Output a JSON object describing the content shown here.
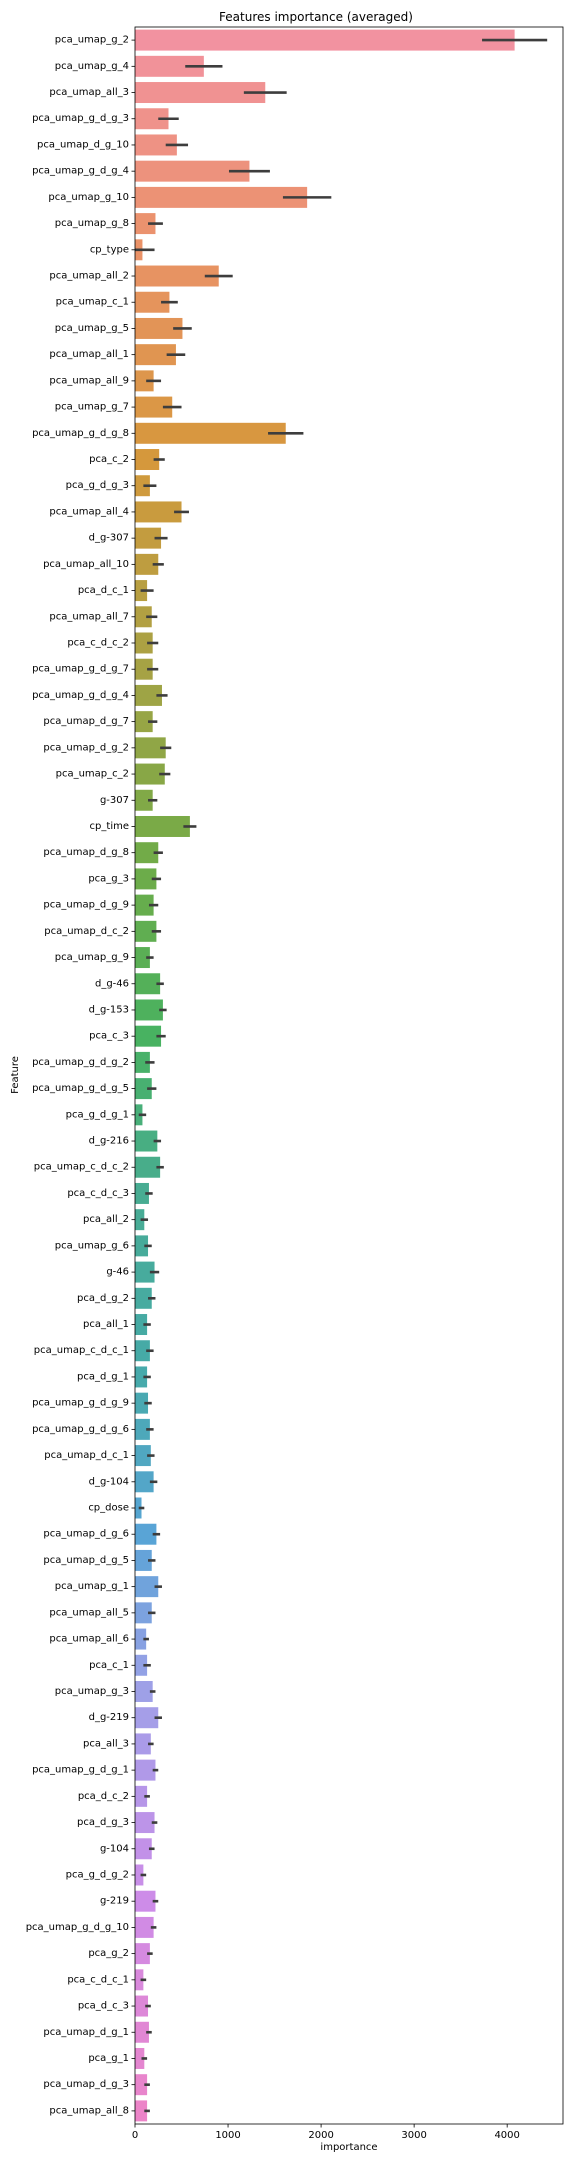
{
  "chart_data": {
    "type": "bar",
    "orientation": "horizontal",
    "title": "Features importance (averaged)",
    "xlabel": "importance",
    "ylabel": "Feature",
    "xlim": [
      0,
      4600
    ],
    "xticks": [
      0,
      1000,
      2000,
      3000,
      4000
    ],
    "grid": false,
    "legend": "none",
    "palette": "husl",
    "categories": [
      "pca_umap_g_2",
      "pca_umap_g_4",
      "pca_umap_all_3",
      "pca_umap_g_d_g_3",
      "pca_umap_d_g_10",
      "pca_umap_g_d_g_4",
      "pca_umap_g_10",
      "pca_umap_g_8",
      "cp_type",
      "pca_umap_all_2",
      "pca_umap_c_1",
      "pca_umap_g_5",
      "pca_umap_all_1",
      "pca_umap_all_9",
      "pca_umap_g_7",
      "pca_umap_g_d_g_8",
      "pca_c_2",
      "pca_g_d_g_3",
      "pca_umap_all_4",
      "d_g-307",
      "pca_umap_all_10",
      "pca_d_c_1",
      "pca_umap_all_7",
      "pca_c_d_c_2",
      "pca_umap_g_d_g_7",
      "pca_umap_g_d_g_4",
      "pca_umap_d_g_7",
      "pca_umap_d_g_2",
      "pca_umap_c_2",
      "g-307",
      "cp_time",
      "pca_umap_d_g_8",
      "pca_g_3",
      "pca_umap_d_g_9",
      "pca_umap_d_c_2",
      "pca_umap_g_9",
      "d_g-46",
      "d_g-153",
      "pca_c_3",
      "pca_umap_g_d_g_2",
      "pca_umap_g_d_g_5",
      "pca_g_d_g_1",
      "d_g-216",
      "pca_umap_c_d_c_2",
      "pca_c_d_c_3",
      "pca_all_2",
      "pca_umap_g_6",
      "g-46",
      "pca_d_g_2",
      "pca_all_1",
      "pca_umap_c_d_c_1",
      "pca_d_g_1",
      "pca_umap_g_d_g_9",
      "pca_umap_g_d_g_6",
      "pca_umap_d_c_1",
      "d_g-104",
      "cp_dose",
      "pca_umap_d_g_6",
      "pca_umap_d_g_5",
      "pca_umap_g_1",
      "pca_umap_all_5",
      "pca_umap_all_6",
      "pca_c_1",
      "pca_umap_g_3",
      "d_g-219",
      "pca_all_3",
      "pca_umap_g_d_g_1",
      "pca_d_c_2",
      "pca_d_g_3",
      "g-104",
      "pca_g_d_g_2",
      "g-219",
      "pca_umap_g_d_g_10",
      "pca_g_2",
      "pca_c_d_c_1",
      "pca_d_c_3",
      "pca_umap_d_g_1",
      "pca_g_1",
      "pca_umap_d_g_3",
      "pca_umap_all_8"
    ],
    "values": [
      4080,
      740,
      1400,
      360,
      450,
      1230,
      1850,
      220,
      80,
      900,
      370,
      510,
      440,
      200,
      400,
      1620,
      260,
      160,
      500,
      280,
      250,
      130,
      180,
      190,
      190,
      290,
      190,
      330,
      320,
      190,
      590,
      250,
      230,
      200,
      230,
      160,
      270,
      300,
      280,
      160,
      180,
      80,
      240,
      270,
      150,
      100,
      140,
      210,
      180,
      130,
      160,
      130,
      140,
      160,
      170,
      200,
      70,
      230,
      180,
      250,
      180,
      120,
      130,
      190,
      250,
      170,
      220,
      130,
      210,
      180,
      90,
      220,
      200,
      160,
      90,
      140,
      150,
      100,
      130,
      130
    ],
    "errors": [
      350,
      200,
      230,
      110,
      120,
      220,
      260,
      80,
      130,
      150,
      90,
      100,
      100,
      80,
      100,
      190,
      60,
      70,
      80,
      70,
      60,
      70,
      60,
      60,
      60,
      60,
      50,
      60,
      60,
      50,
      70,
      50,
      50,
      50,
      50,
      40,
      40,
      40,
      50,
      50,
      50,
      40,
      40,
      40,
      40,
      40,
      40,
      50,
      40,
      40,
      40,
      40,
      40,
      40,
      40,
      40,
      30,
      40,
      40,
      40,
      40,
      30,
      40,
      30,
      40,
      30,
      30,
      30,
      30,
      30,
      30,
      30,
      30,
      30,
      30,
      30,
      30,
      30,
      30,
      30
    ]
  }
}
